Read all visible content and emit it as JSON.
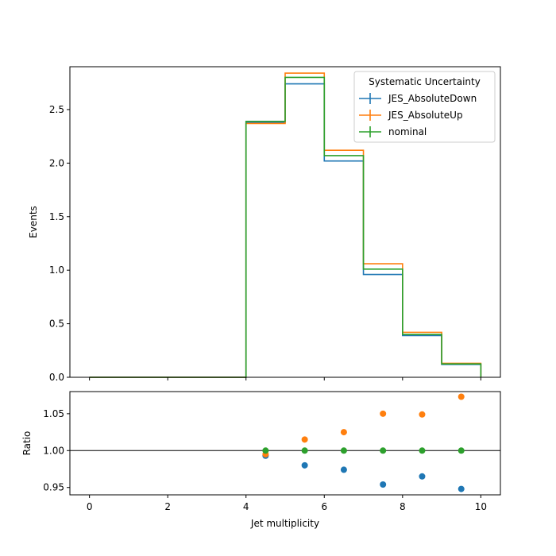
{
  "chart_data": [
    {
      "type": "step",
      "xlabel": "",
      "ylabel": "Events",
      "xlim": [
        -0.5,
        10.5
      ],
      "ylim": [
        0,
        2.9
      ],
      "yticks": [
        "0.0",
        "0.5",
        "1.0",
        "1.5",
        "2.0",
        "2.5"
      ],
      "bin_edges": [
        0,
        1,
        2,
        3,
        4,
        5,
        6,
        7,
        8,
        9,
        10
      ],
      "legend": {
        "title": "Systematic Uncertainty",
        "placement": "top-right"
      },
      "series": [
        {
          "name": "JES_AbsoluteDown",
          "color": "#1f77b4",
          "values": [
            0,
            0,
            0,
            0,
            2.38,
            2.74,
            2.02,
            0.96,
            0.39,
            0.12
          ]
        },
        {
          "name": "JES_AbsoluteUp",
          "color": "#ff7f0e",
          "values": [
            0,
            0,
            0,
            0,
            2.37,
            2.84,
            2.12,
            1.06,
            0.42,
            0.13
          ]
        },
        {
          "name": "nominal",
          "color": "#2ca02c",
          "values": [
            0,
            0,
            0,
            0,
            2.39,
            2.8,
            2.07,
            1.01,
            0.4,
            0.125
          ]
        }
      ]
    },
    {
      "type": "scatter",
      "xlabel": "Jet multiplicity",
      "ylabel": "Ratio",
      "xlim": [
        -0.5,
        10.5
      ],
      "ylim": [
        0.94,
        1.08
      ],
      "xticks": [
        "0",
        "2",
        "4",
        "6",
        "8",
        "10"
      ],
      "yticks": [
        "0.95",
        "1.00",
        "1.05"
      ],
      "reference_line": 1.0,
      "series": [
        {
          "name": "JES_AbsoluteDown",
          "color": "#1f77b4",
          "x": [
            4.5,
            5.5,
            6.5,
            7.5,
            8.5,
            9.5
          ],
          "y": [
            0.993,
            0.98,
            0.974,
            0.954,
            0.965,
            0.948
          ]
        },
        {
          "name": "JES_AbsoluteUp",
          "color": "#ff7f0e",
          "x": [
            4.5,
            5.5,
            6.5,
            7.5,
            8.5,
            9.5
          ],
          "y": [
            0.995,
            1.015,
            1.025,
            1.05,
            1.049,
            1.073
          ]
        },
        {
          "name": "nominal",
          "color": "#2ca02c",
          "x": [
            4.5,
            5.5,
            6.5,
            7.5,
            8.5,
            9.5
          ],
          "y": [
            1.0,
            1.0,
            1.0,
            1.0,
            1.0,
            1.0
          ]
        }
      ]
    }
  ]
}
